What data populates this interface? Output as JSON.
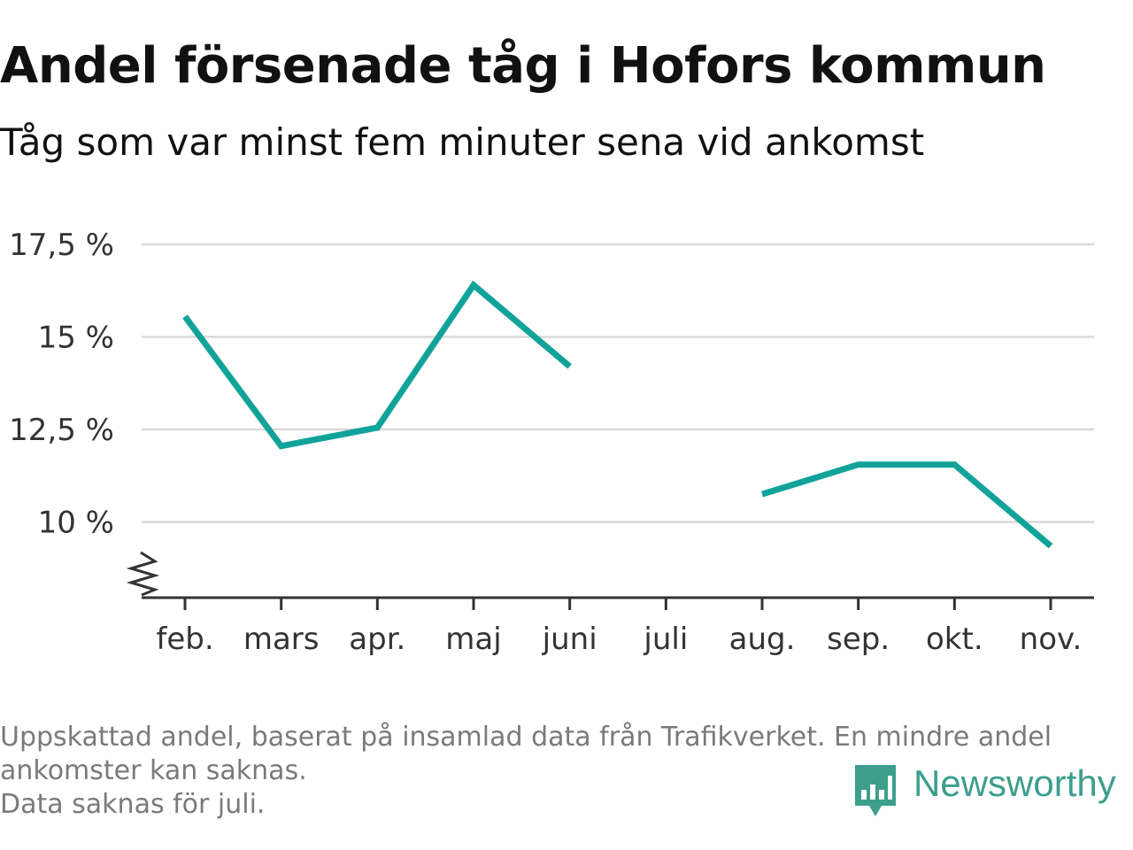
{
  "header": {
    "title": "Andel försenade tåg i Hofors kommun",
    "subtitle": "Tåg som var minst fem minuter sena vid ankomst"
  },
  "chart_data": {
    "type": "line",
    "categories": [
      "feb.",
      "mars",
      "apr.",
      "maj",
      "juni",
      "juli",
      "aug.",
      "sep.",
      "okt.",
      "nov."
    ],
    "series": [
      {
        "values": [
          15.55,
          12.05,
          12.55,
          16.4,
          14.2,
          null,
          10.75,
          11.55,
          11.55,
          9.35
        ]
      }
    ],
    "ylim": [
      8,
      17.5
    ],
    "y_ticks": [
      10,
      12.5,
      15,
      17.5
    ],
    "y_tick_labels": [
      "10 %",
      "12,5 %",
      "15 %",
      "17,5 %"
    ],
    "axis_break": true,
    "grid": true,
    "line_color": "#11a39a",
    "grid_color": "#d9d9d9",
    "xlabel": "",
    "ylabel": ""
  },
  "footer": {
    "note_line1": "Uppskattad andel, baserat på insamlad data från Trafikverket. En mindre andel",
    "note_line2": "ankomster kan saknas.",
    "note_line3": "Data saknas för juli.",
    "brand": "Newsworthy",
    "brand_color": "#3d9e8c",
    "brand_icon": "newsworthy-logo-icon"
  }
}
